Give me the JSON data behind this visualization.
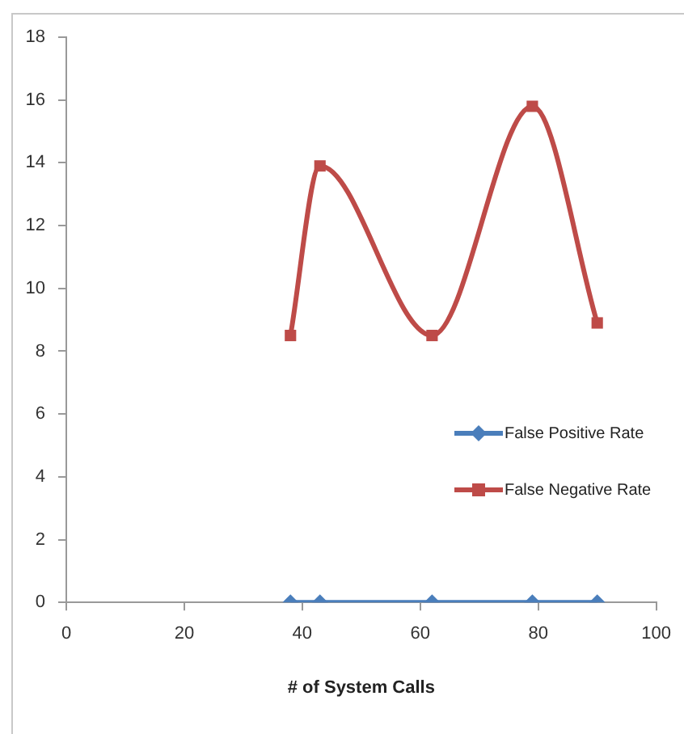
{
  "chart_data": {
    "type": "line",
    "xlabel": "# of System Calls",
    "x": [
      38,
      43,
      62,
      79,
      90
    ],
    "xlim": [
      0,
      100
    ],
    "xticks": [
      0,
      20,
      40,
      60,
      80,
      100
    ],
    "ylim": [
      0,
      18
    ],
    "yticks": [
      0,
      2,
      4,
      6,
      8,
      10,
      12,
      14,
      16,
      18
    ],
    "grid": false,
    "legend": "right",
    "series": [
      {
        "name": "False Positive Rate",
        "color": "#4a7ebb",
        "marker": "diamond",
        "values": [
          0,
          0,
          0,
          0,
          0
        ]
      },
      {
        "name": "False Negative Rate",
        "color": "#be4b48",
        "marker": "square",
        "values": [
          8.5,
          13.9,
          8.5,
          15.8,
          8.9
        ]
      }
    ]
  }
}
